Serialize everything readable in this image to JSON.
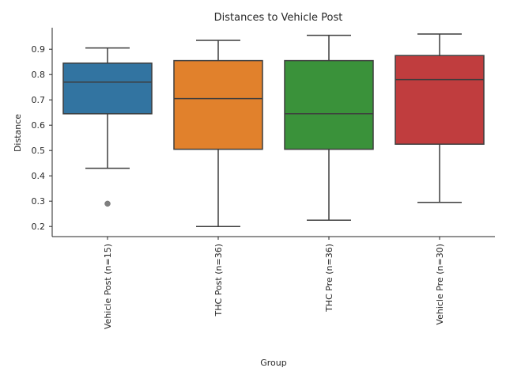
{
  "chart_data": {
    "type": "box",
    "title": "Distances to Vehicle Post",
    "xlabel": "Group",
    "ylabel": "Distance",
    "ylim": [
      0.16,
      0.985
    ],
    "yticks": [
      0.2,
      0.3,
      0.4,
      0.5,
      0.6,
      0.7,
      0.8,
      0.9
    ],
    "ytick_labels": [
      "0.2",
      "0.3",
      "0.4",
      "0.5",
      "0.6",
      "0.7",
      "0.8",
      "0.9"
    ],
    "grid": false,
    "groups": [
      {
        "label": "Vehicle Post (n=15)",
        "color": "#3274a1",
        "whisker_low": 0.43,
        "q1": 0.645,
        "median": 0.77,
        "q3": 0.845,
        "whisker_high": 0.905,
        "outliers": [
          0.29
        ]
      },
      {
        "label": "THC Post (n=36)",
        "color": "#e1812c",
        "whisker_low": 0.2,
        "q1": 0.505,
        "median": 0.705,
        "q3": 0.855,
        "whisker_high": 0.935,
        "outliers": []
      },
      {
        "label": "THC Pre (n=36)",
        "color": "#3a923a",
        "whisker_low": 0.225,
        "q1": 0.505,
        "median": 0.645,
        "q3": 0.855,
        "whisker_high": 0.955,
        "outliers": []
      },
      {
        "label": "Vehicle Pre (n=30)",
        "color": "#c03d3e",
        "whisker_low": 0.295,
        "q1": 0.525,
        "median": 0.78,
        "q3": 0.875,
        "whisker_high": 0.96,
        "outliers": []
      }
    ]
  }
}
